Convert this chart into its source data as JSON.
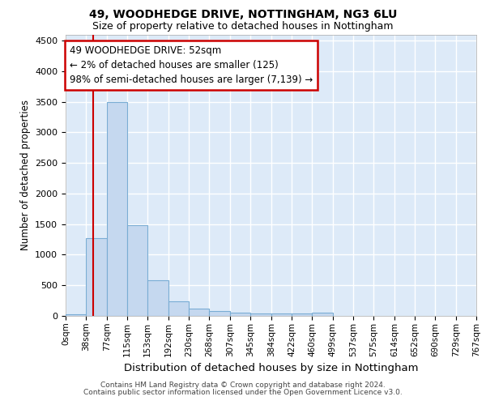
{
  "title": "49, WOODHEDGE DRIVE, NOTTINGHAM, NG3 6LU",
  "subtitle": "Size of property relative to detached houses in Nottingham",
  "xlabel": "Distribution of detached houses by size in Nottingham",
  "ylabel": "Number of detached properties",
  "bar_color": "#c5d8ef",
  "bar_edge_color": "#7aadd4",
  "background_color": "#ddeaf8",
  "grid_color": "#ffffff",
  "annotation_box_edgecolor": "#cc0000",
  "annotation_line1": "49 WOODHEDGE DRIVE: 52sqm",
  "annotation_line2": "← 2% of detached houses are smaller (125)",
  "annotation_line3": "98% of semi-detached houses are larger (7,139) →",
  "property_line_x": 52,
  "bin_edges": [
    0,
    38,
    77,
    115,
    153,
    192,
    230,
    268,
    307,
    345,
    384,
    422,
    460,
    499,
    537,
    575,
    614,
    652,
    690,
    729,
    767
  ],
  "bar_heights": [
    28,
    1270,
    3500,
    1480,
    580,
    242,
    118,
    82,
    55,
    45,
    40,
    35,
    52,
    0,
    0,
    0,
    0,
    0,
    0,
    0
  ],
  "tick_labels": [
    "0sqm",
    "38sqm",
    "77sqm",
    "115sqm",
    "153sqm",
    "192sqm",
    "230sqm",
    "268sqm",
    "307sqm",
    "345sqm",
    "384sqm",
    "422sqm",
    "460sqm",
    "499sqm",
    "537sqm",
    "575sqm",
    "614sqm",
    "652sqm",
    "690sqm",
    "729sqm",
    "767sqm"
  ],
  "ylim": [
    0,
    4600
  ],
  "yticks": [
    0,
    500,
    1000,
    1500,
    2000,
    2500,
    3000,
    3500,
    4000,
    4500
  ],
  "footer_line1": "Contains HM Land Registry data © Crown copyright and database right 2024.",
  "footer_line2": "Contains public sector information licensed under the Open Government Licence v3.0."
}
